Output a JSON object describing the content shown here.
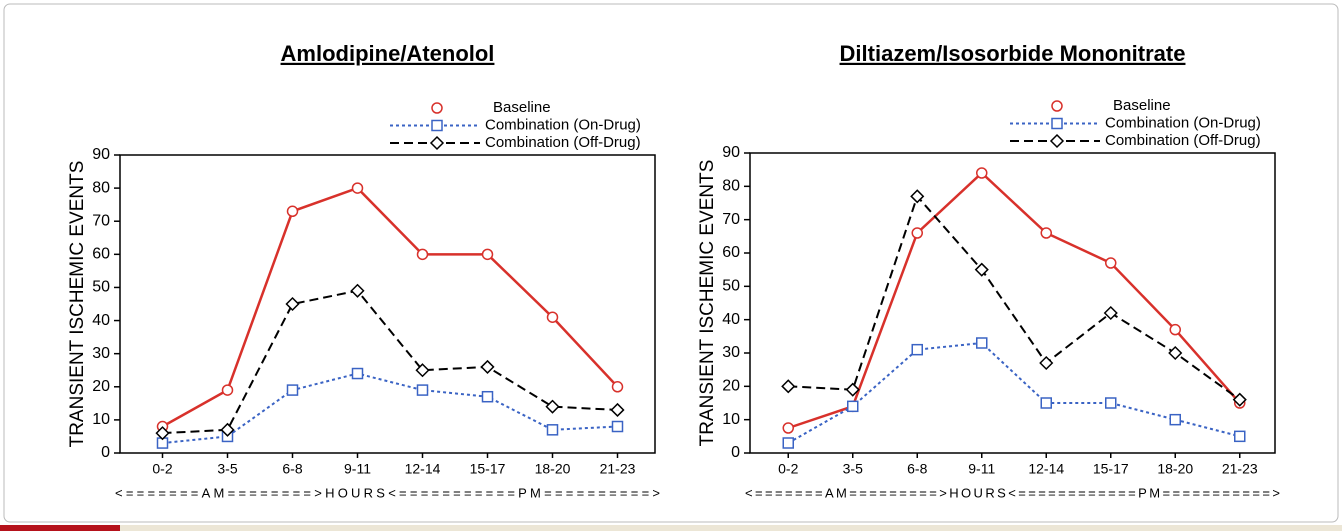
{
  "chart_data": [
    {
      "type": "line",
      "title": "Amlodipine/Atenolol",
      "y_label": "TRANSIENT ISCHEMIC EVENTS",
      "x_label": "<=======AM========>HOURS<===========PM==========>",
      "categories": [
        "0-2",
        "3-5",
        "6-8",
        "9-11",
        "12-14",
        "15-17",
        "18-20",
        "21-23"
      ],
      "ylim": [
        0,
        90
      ],
      "yticks": [
        0,
        10,
        20,
        30,
        40,
        50,
        60,
        70,
        80,
        90
      ],
      "legend": "upper right",
      "series": [
        {
          "name": "Baseline",
          "color": "#d8312b",
          "marker": "circle",
          "dash": "solid",
          "values": [
            8,
            19,
            73,
            80,
            60,
            60,
            41,
            20
          ]
        },
        {
          "name": "Combination (On-Drug)",
          "color": "#3a63c4",
          "marker": "square",
          "dash": "dotted",
          "values": [
            3,
            5,
            19,
            24,
            19,
            17,
            7,
            8
          ]
        },
        {
          "name": "Combination (Off-Drug)",
          "color": "#000000",
          "marker": "diamond",
          "dash": "dashed",
          "values": [
            6,
            7,
            45,
            49,
            25,
            26,
            14,
            13
          ]
        }
      ]
    },
    {
      "type": "line",
      "title": "Diltiazem/Isosorbide Mononitrate",
      "y_label": "TRANSIENT ISCHEMIC EVENTS",
      "x_label": "<=======AM=========>HOURS<============PM===========>",
      "categories": [
        "0-2",
        "3-5",
        "6-8",
        "9-11",
        "12-14",
        "15-17",
        "18-20",
        "21-23"
      ],
      "ylim": [
        0,
        90
      ],
      "yticks": [
        0,
        10,
        20,
        30,
        40,
        50,
        60,
        70,
        80,
        90
      ],
      "legend": "upper right",
      "series": [
        {
          "name": "Baseline",
          "color": "#d8312b",
          "marker": "circle",
          "dash": "solid",
          "values": [
            7.5,
            14,
            66,
            84,
            66,
            57,
            37,
            15
          ]
        },
        {
          "name": "Combination (On-Drug)",
          "color": "#3a63c4",
          "marker": "square",
          "dash": "dotted",
          "values": [
            3,
            14,
            31,
            33,
            15,
            15,
            10,
            5
          ]
        },
        {
          "name": "Combination (Off-Drug)",
          "color": "#000000",
          "marker": "diamond",
          "dash": "dashed",
          "values": [
            20,
            19,
            77,
            55,
            27,
            42,
            30,
            16
          ]
        }
      ]
    }
  ]
}
